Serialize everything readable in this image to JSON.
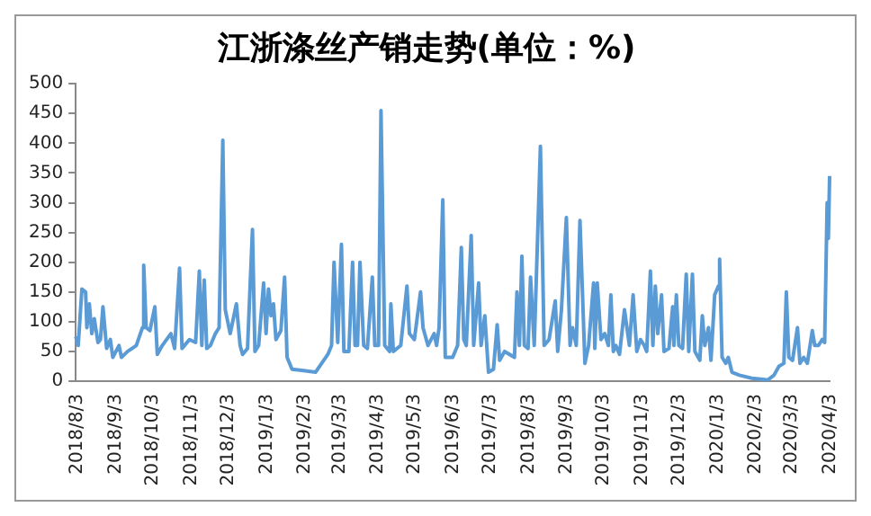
{
  "chart_data": {
    "type": "line",
    "title": "江浙涤丝产销走势(单位：%)",
    "x": [
      "2018-08-03",
      "2018-08-05",
      "2018-08-08",
      "2018-08-11",
      "2018-08-12",
      "2018-08-14",
      "2018-08-16",
      "2018-08-18",
      "2018-08-21",
      "2018-08-23",
      "2018-08-25",
      "2018-08-28",
      "2018-08-31",
      "2018-09-02",
      "2018-09-07",
      "2018-09-09",
      "2018-09-14",
      "2018-09-21",
      "2018-09-26",
      "2018-09-27",
      "2018-09-29",
      "2018-10-02",
      "2018-10-06",
      "2018-10-08",
      "2018-10-12",
      "2018-10-19",
      "2018-10-22",
      "2018-10-26",
      "2018-10-28",
      "2018-11-03",
      "2018-11-08",
      "2018-11-11",
      "2018-11-13",
      "2018-11-15",
      "2018-11-17",
      "2018-11-20",
      "2018-11-24",
      "2018-11-27",
      "2018-11-30",
      "2018-12-02",
      "2018-12-06",
      "2018-12-11",
      "2018-12-14",
      "2018-12-16",
      "2018-12-20",
      "2018-12-24",
      "2018-12-26",
      "2018-12-29",
      "2019-01-02",
      "2019-01-04",
      "2019-01-06",
      "2019-01-08",
      "2019-01-10",
      "2019-01-12",
      "2019-01-16",
      "2019-01-19",
      "2019-01-21",
      "2019-01-25",
      "2019-02-02",
      "2019-02-13",
      "2019-02-18",
      "2019-02-23",
      "2019-02-26",
      "2019-02-28",
      "2019-03-03",
      "2019-03-06",
      "2019-03-08",
      "2019-03-12",
      "2019-03-15",
      "2019-03-17",
      "2019-03-19",
      "2019-03-21",
      "2019-03-24",
      "2019-03-27",
      "2019-03-31",
      "2019-04-02",
      "2019-04-05",
      "2019-04-07",
      "2019-04-10",
      "2019-04-14",
      "2019-04-15",
      "2019-04-17",
      "2019-04-23",
      "2019-04-28",
      "2019-04-30",
      "2019-05-04",
      "2019-05-09",
      "2019-05-11",
      "2019-05-15",
      "2019-05-20",
      "2019-05-22",
      "2019-05-24",
      "2019-05-27",
      "2019-05-29",
      "2019-06-04",
      "2019-06-08",
      "2019-06-11",
      "2019-06-13",
      "2019-06-15",
      "2019-06-19",
      "2019-06-21",
      "2019-06-25",
      "2019-06-27",
      "2019-06-30",
      "2019-07-03",
      "2019-07-07",
      "2019-07-10",
      "2019-07-12",
      "2019-07-16",
      "2019-07-24",
      "2019-07-26",
      "2019-07-28",
      "2019-07-30",
      "2019-08-01",
      "2019-08-04",
      "2019-08-06",
      "2019-08-09",
      "2019-08-14",
      "2019-08-17",
      "2019-08-21",
      "2019-08-26",
      "2019-08-28",
      "2019-08-31",
      "2019-09-04",
      "2019-09-07",
      "2019-09-09",
      "2019-09-12",
      "2019-09-15",
      "2019-09-19",
      "2019-09-22",
      "2019-09-26",
      "2019-09-27",
      "2019-09-29",
      "2019-10-02",
      "2019-10-05",
      "2019-10-08",
      "2019-10-10",
      "2019-10-12",
      "2019-10-14",
      "2019-10-17",
      "2019-10-21",
      "2019-10-25",
      "2019-10-28",
      "2019-10-31",
      "2019-11-03",
      "2019-11-06",
      "2019-11-08",
      "2019-11-11",
      "2019-11-13",
      "2019-11-15",
      "2019-11-17",
      "2019-11-20",
      "2019-11-22",
      "2019-11-26",
      "2019-11-29",
      "2019-11-30",
      "2019-12-02",
      "2019-12-04",
      "2019-12-07",
      "2019-12-10",
      "2019-12-12",
      "2019-12-15",
      "2019-12-17",
      "2019-12-21",
      "2019-12-23",
      "2019-12-25",
      "2019-12-28",
      "2019-12-30",
      "2020-01-02",
      "2020-01-05",
      "2020-01-06",
      "2020-01-08",
      "2020-01-11",
      "2020-01-13",
      "2020-01-16",
      "2020-01-22",
      "2020-02-01",
      "2020-02-10",
      "2020-02-14",
      "2020-02-19",
      "2020-02-23",
      "2020-02-27",
      "2020-02-29",
      "2020-03-02",
      "2020-03-05",
      "2020-03-09",
      "2020-03-11",
      "2020-03-14",
      "2020-03-17",
      "2020-03-21",
      "2020-03-23",
      "2020-03-26",
      "2020-03-29",
      "2020-03-31",
      "2020-04-02",
      "2020-04-03",
      "2020-04-04"
    ],
    "series": [
      {
        "color": "#5b9bd5",
        "values": [
          75,
          60,
          155,
          150,
          90,
          130,
          80,
          105,
          65,
          70,
          125,
          55,
          70,
          40,
          60,
          40,
          50,
          60,
          90,
          195,
          90,
          85,
          125,
          45,
          60,
          80,
          55,
          190,
          55,
          70,
          65,
          185,
          60,
          170,
          55,
          60,
          80,
          90,
          405,
          120,
          80,
          130,
          60,
          45,
          55,
          255,
          50,
          60,
          165,
          80,
          155,
          110,
          130,
          70,
          85,
          175,
          40,
          20,
          18,
          15,
          30,
          45,
          60,
          200,
          65,
          230,
          50,
          50,
          200,
          60,
          60,
          200,
          60,
          55,
          175,
          60,
          60,
          455,
          60,
          50,
          130,
          50,
          60,
          160,
          80,
          70,
          150,
          90,
          60,
          80,
          60,
          90,
          305,
          40,
          40,
          60,
          225,
          70,
          60,
          245,
          60,
          165,
          60,
          110,
          15,
          20,
          95,
          35,
          50,
          40,
          150,
          60,
          210,
          60,
          55,
          175,
          60,
          395,
          60,
          70,
          135,
          50,
          120,
          275,
          60,
          90,
          60,
          270,
          30,
          60,
          165,
          55,
          165,
          70,
          80,
          60,
          145,
          50,
          60,
          45,
          120,
          60,
          145,
          50,
          70,
          60,
          50,
          185,
          60,
          160,
          80,
          145,
          50,
          55,
          125,
          60,
          145,
          60,
          55,
          180,
          50,
          180,
          50,
          35,
          110,
          60,
          90,
          35,
          145,
          160,
          205,
          40,
          30,
          40,
          15,
          10,
          5,
          3,
          2,
          10,
          25,
          30,
          150,
          40,
          35,
          90,
          30,
          40,
          30,
          85,
          60,
          60,
          70,
          65,
          300,
          240,
          345
        ]
      }
    ],
    "xlim": [
      "2018-08-03",
      "2020-04-04"
    ],
    "xticks": [
      {
        "value": "2018-08-03",
        "label": "2018/8/3"
      },
      {
        "value": "2018-09-03",
        "label": "2018/9/3"
      },
      {
        "value": "2018-10-03",
        "label": "2018/10/3"
      },
      {
        "value": "2018-11-03",
        "label": "2018/11/3"
      },
      {
        "value": "2018-12-03",
        "label": "2018/12/3"
      },
      {
        "value": "2019-01-03",
        "label": "2019/1/3"
      },
      {
        "value": "2019-02-03",
        "label": "2019/2/3"
      },
      {
        "value": "2019-03-03",
        "label": "2019/3/3"
      },
      {
        "value": "2019-04-03",
        "label": "2019/4/3"
      },
      {
        "value": "2019-05-03",
        "label": "2019/5/3"
      },
      {
        "value": "2019-06-03",
        "label": "2019/6/3"
      },
      {
        "value": "2019-07-03",
        "label": "2019/7/3"
      },
      {
        "value": "2019-08-03",
        "label": "2019/8/3"
      },
      {
        "value": "2019-09-03",
        "label": "2019/9/3"
      },
      {
        "value": "2019-10-03",
        "label": "2019/10/3"
      },
      {
        "value": "2019-11-03",
        "label": "2019/11/3"
      },
      {
        "value": "2019-12-03",
        "label": "2019/12/3"
      },
      {
        "value": "2020-01-03",
        "label": "2020/1/3"
      },
      {
        "value": "2020-02-03",
        "label": "2020/2/3"
      },
      {
        "value": "2020-03-03",
        "label": "2020/3/3"
      },
      {
        "value": "2020-04-03",
        "label": "2020/4/3"
      }
    ],
    "ylim": [
      0,
      500
    ],
    "yticks": [
      0,
      50,
      100,
      150,
      200,
      250,
      300,
      350,
      400,
      450,
      500
    ],
    "grid": false,
    "legend": false,
    "marker": "none",
    "line_style": "solid"
  }
}
